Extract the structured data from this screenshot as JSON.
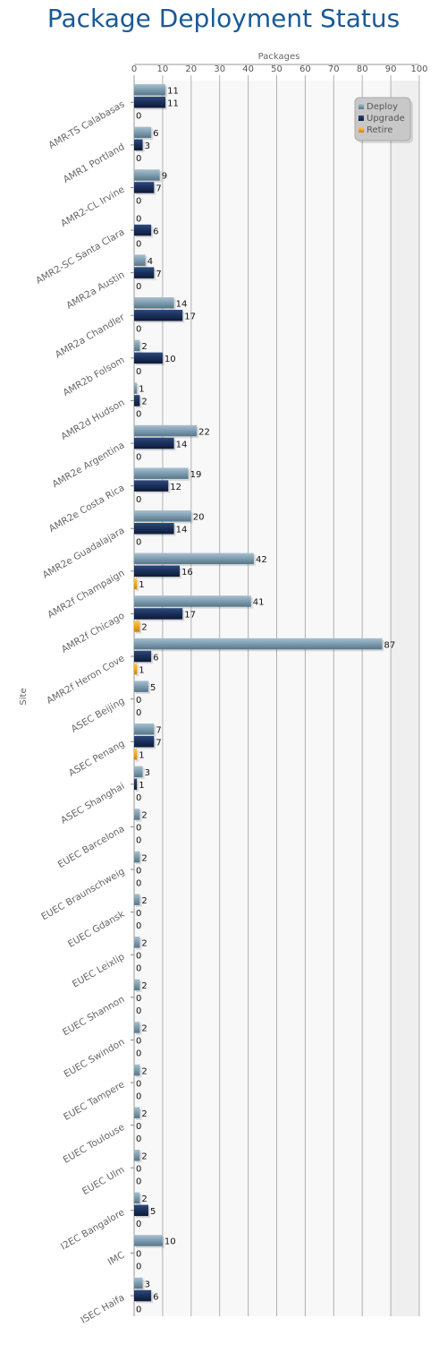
{
  "chart_data": {
    "type": "bar",
    "orientation": "horizontal",
    "title": "Package Deployment Status",
    "xlabel": "Packages",
    "ylabel": "Site",
    "xlim": [
      0,
      100
    ],
    "x_ticks": [
      "0",
      "10",
      "20",
      "30",
      "40",
      "50",
      "60",
      "70",
      "80",
      "90",
      "100"
    ],
    "grid": true,
    "legend_position": "top-right",
    "categories": [
      "AMR-TS Calabasas",
      "AMR1 Portland",
      "AMR2-CL Irvine",
      "AMR2-SC Santa Clara",
      "AMR2a Austin",
      "AMR2a Chandler",
      "AMR2b Folsom",
      "AMR2d Hudson",
      "AMR2e Argentina",
      "AMR2e Costa Rica",
      "AMR2e Guadalajara",
      "AMR2f Champaign",
      "AMR2f Chicago",
      "AMR2f Heron Cove",
      "ASEC Beijing",
      "ASEC Penang",
      "ASEC Shanghai",
      "EUEC Barcelona",
      "EUEC Braunschweig",
      "EUEC Gdansk",
      "EUEC Leixlip",
      "EUEC Shannon",
      "EUEC Swindon",
      "EUEC Tampere",
      "EUEC Toulouse",
      "EUEC Ulm",
      "I2EC Bangalore",
      "IMC",
      "ISEC Haifa"
    ],
    "series": [
      {
        "name": "Deploy",
        "color": "#7a9aae",
        "values": [
          11,
          6,
          9,
          0,
          4,
          14,
          2,
          1,
          22,
          19,
          20,
          42,
          41,
          87,
          5,
          7,
          3,
          2,
          2,
          2,
          2,
          2,
          2,
          2,
          2,
          2,
          2,
          10,
          3
        ]
      },
      {
        "name": "Upgrade",
        "color": "#1a2f5a",
        "values": [
          11,
          3,
          7,
          6,
          7,
          17,
          10,
          2,
          14,
          12,
          14,
          16,
          17,
          6,
          0,
          7,
          1,
          0,
          0,
          0,
          0,
          0,
          0,
          0,
          0,
          0,
          5,
          0,
          6
        ]
      },
      {
        "name": "Retire",
        "color": "#f0a81e",
        "values": [
          0,
          0,
          0,
          0,
          0,
          0,
          0,
          0,
          0,
          0,
          0,
          1,
          2,
          1,
          0,
          1,
          0,
          0,
          0,
          0,
          0,
          0,
          0,
          0,
          0,
          0,
          0,
          0,
          0
        ]
      }
    ]
  }
}
